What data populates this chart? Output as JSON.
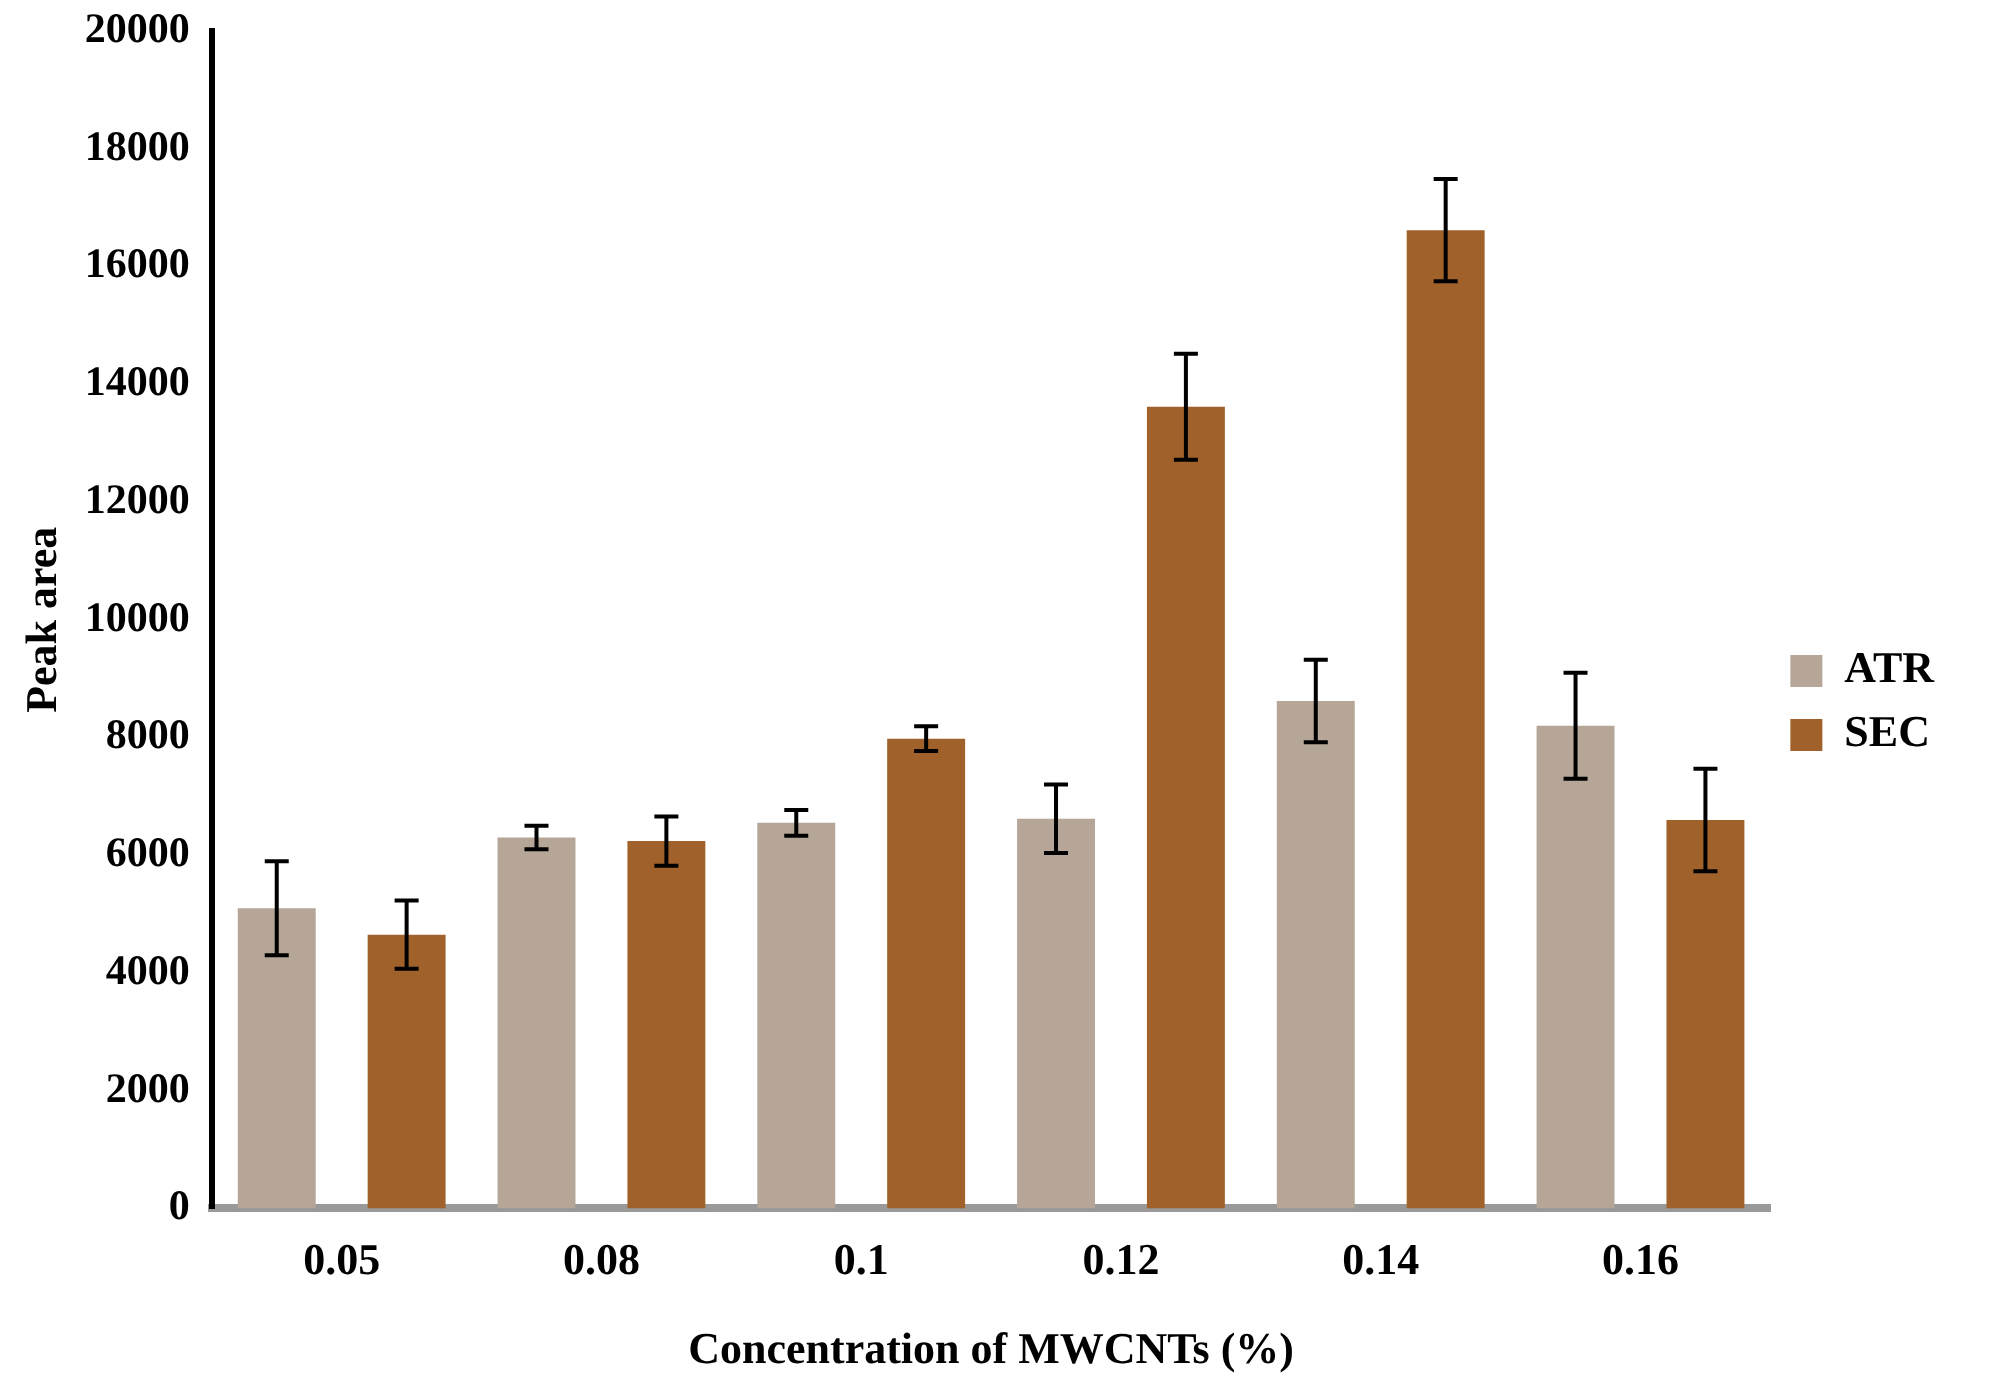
{
  "chart_data": {
    "type": "bar",
    "xlabel": "Concentration of MWCNTs (%)",
    "ylabel": "Peak area",
    "categories": [
      "0.05",
      "0.08",
      "0.1",
      "0.12",
      "0.14",
      "0.16"
    ],
    "series": [
      {
        "name": "ATR",
        "color": "#b5a697",
        "values": [
          5100,
          6300,
          6550,
          6620,
          8620,
          8200
        ],
        "errors": [
          800,
          200,
          220,
          580,
          700,
          900
        ]
      },
      {
        "name": "SEC",
        "color": "#a0622a",
        "values": [
          4650,
          6240,
          7980,
          13620,
          16620,
          6600
        ],
        "errors": [
          580,
          420,
          210,
          900,
          870,
          870
        ]
      }
    ],
    "ylim": [
      0,
      20000
    ],
    "yticks": [
      0,
      2000,
      4000,
      6000,
      8000,
      10000,
      12000,
      14000,
      16000,
      18000,
      20000
    ],
    "grid": false,
    "legend": "right"
  }
}
